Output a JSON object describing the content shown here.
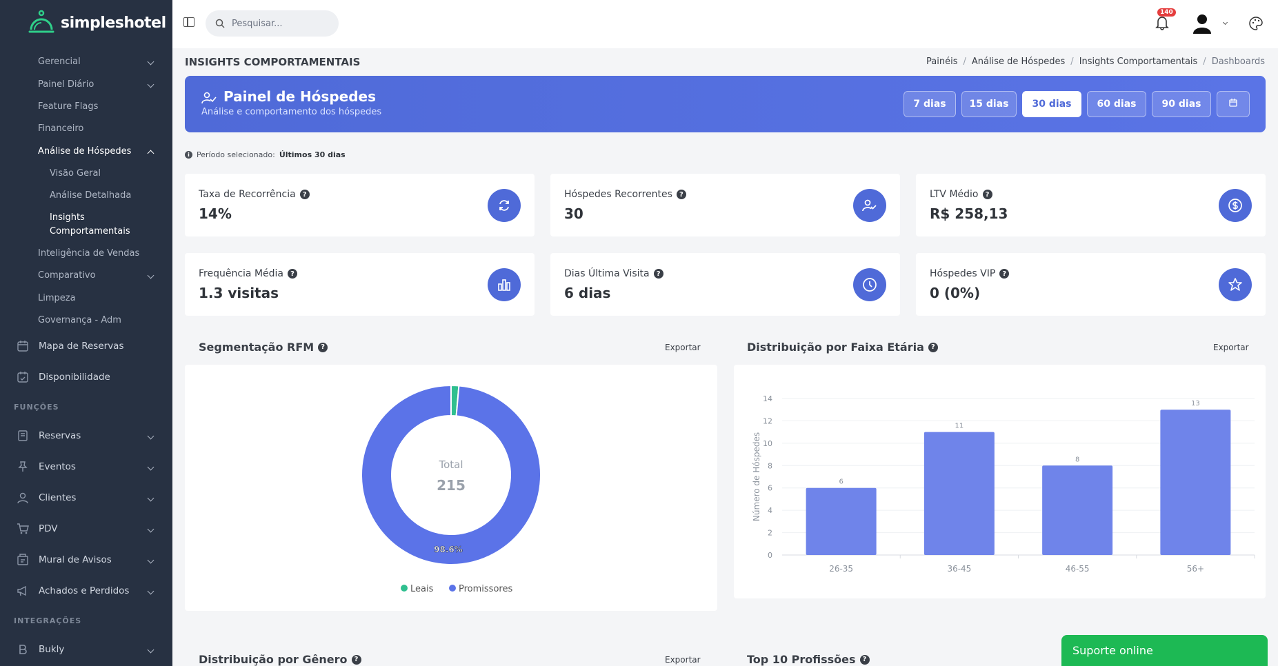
{
  "app": {
    "name": "simpleshotel"
  },
  "sidebar": {
    "sub_items": [
      {
        "label": "Gerencial",
        "expandable": true
      },
      {
        "label": "Painel Diário",
        "expandable": true
      },
      {
        "label": "Feature Flags"
      },
      {
        "label": "Financeiro"
      },
      {
        "label": "Análise de Hóspedes",
        "expandable": true,
        "expanded": true
      }
    ],
    "guest_children": [
      {
        "label": "Visão Geral"
      },
      {
        "label": "Análise Detalhada"
      },
      {
        "label": "Insights Comportamentais",
        "active": true
      }
    ],
    "sub_items2": [
      {
        "label": "Inteligência de Vendas"
      },
      {
        "label": "Comparativo",
        "expandable": true
      },
      {
        "label": "Limpeza"
      },
      {
        "label": "Governança - Adm"
      }
    ],
    "main_items": [
      {
        "label": "Mapa de Reservas",
        "icon": "calendar-icon"
      },
      {
        "label": "Disponibilidade",
        "icon": "calendar-check-icon"
      }
    ],
    "section_funcoes": "FUNÇÕES",
    "funcoes_items": [
      {
        "label": "Reservas",
        "icon": "notebook-icon"
      },
      {
        "label": "Eventos",
        "icon": "pin-icon"
      },
      {
        "label": "Clientes",
        "icon": "user-icon"
      },
      {
        "label": "PDV",
        "icon": "cart-icon"
      },
      {
        "label": "Mural de Avisos",
        "icon": "board-icon"
      },
      {
        "label": "Achados e Perdidos",
        "icon": "megaphone-icon"
      }
    ],
    "section_integracoes": "INTEGRAÇÕES",
    "integracoes_items": [
      {
        "label": "Bukly",
        "icon": "b-letter-icon"
      }
    ]
  },
  "topbar": {
    "search_placeholder": "Pesquisar...",
    "notification_count": "140"
  },
  "page": {
    "title": "INSIGHTS COMPORTAMENTAIS",
    "breadcrumb": [
      "Painéis",
      "Análise de Hóspedes",
      "Insights Comportamentais",
      "Dashboards"
    ]
  },
  "hero": {
    "title": "Painel de Hóspedes",
    "subtitle": "Análise e comportamento dos hóspedes",
    "ranges": [
      "7 dias",
      "15 dias",
      "30 dias",
      "60 dias",
      "90 dias"
    ],
    "active_range": "30 dias"
  },
  "period": {
    "label": "Período selecionado:",
    "value": "Últimos 30 dias"
  },
  "kpis": [
    {
      "label": "Taxa de Recorrência",
      "value": "14%",
      "icon": "refresh-icon"
    },
    {
      "label": "Hóspedes Recorrentes",
      "value": "30",
      "icon": "user-check-icon"
    },
    {
      "label": "LTV Médio",
      "value": "R$ 258,13",
      "icon": "dollar-icon"
    },
    {
      "label": "Frequência Média",
      "value": "1.3 visitas",
      "icon": "bar-chart-icon"
    },
    {
      "label": "Dias Última Visita",
      "value": "6 dias",
      "icon": "clock-icon"
    },
    {
      "label": "Hóspedes VIP",
      "value": "0 (0%)",
      "icon": "star-icon"
    }
  ],
  "sections": {
    "rfm_title": "Segmentação RFM",
    "age_title": "Distribuição por Faixa Etária",
    "gender_title": "Distribuição por Gênero",
    "professions_title": "Top 10 Profissões",
    "export_label": "Exportar"
  },
  "chart_data": [
    {
      "type": "pie",
      "title": "Segmentação RFM",
      "center_label": "Total",
      "center_value": "215",
      "categories": [
        "Leais",
        "Promissores"
      ],
      "values": [
        1.4,
        98.6
      ],
      "data_labels": [
        "",
        "98.6%"
      ],
      "colors": [
        "#2fbf8f",
        "#5b73e8"
      ],
      "legend": "bottom"
    },
    {
      "type": "bar",
      "title": "Distribuição por Faixa Etária",
      "categories": [
        "26-35",
        "36-45",
        "46-55",
        "56+"
      ],
      "values": [
        6,
        11,
        8,
        13
      ],
      "ylabel": "Número de Hóspedes",
      "yticks": [
        "0",
        "2",
        "4",
        "6",
        "8",
        "10",
        "12",
        "14"
      ],
      "ylim": [
        0,
        14
      ],
      "color": "#6f84ea",
      "grid": true
    }
  ],
  "chat": {
    "label": "Suporte online"
  }
}
